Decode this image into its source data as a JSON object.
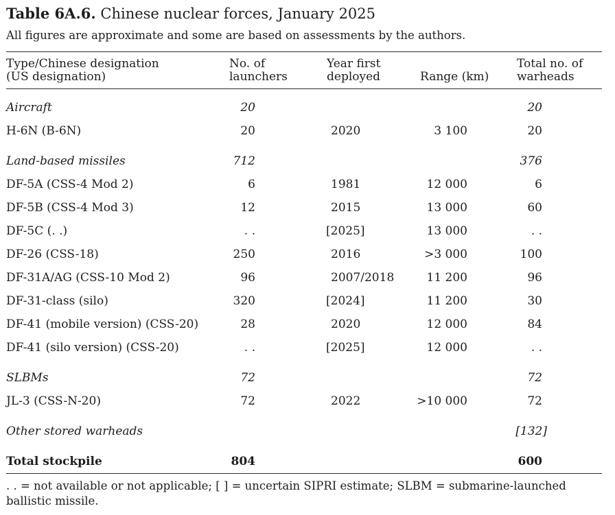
{
  "title": {
    "label": "Table 6A.6.",
    "text": " Chinese nuclear forces, January 2025"
  },
  "subtitle": "All figures are approximate and some are based on assessments by the authors.",
  "table": {
    "columns": [
      {
        "id": "type",
        "header_line1": "Type/Chinese designation",
        "header_line2": "(US designation)"
      },
      {
        "id": "launchers",
        "header_line1": "No. of",
        "header_line2": "launchers"
      },
      {
        "id": "year",
        "header_line1": "Year first",
        "header_line2": "deployed"
      },
      {
        "id": "range",
        "header_line1": "",
        "header_line2": "Range (km)"
      },
      {
        "id": "warheads",
        "header_line1": "Total no. of",
        "header_line2": "warheads"
      }
    ],
    "rows": [
      {
        "style": "section",
        "type": "Aircraft",
        "launchers": "20",
        "year": "",
        "range": "",
        "warheads": "20"
      },
      {
        "style": "data",
        "type": "H-6N (B-6N)",
        "launchers": "20",
        "year": "2020",
        "range": "3 100",
        "warheads": "20"
      },
      {
        "style": "section",
        "type": "Land-based missiles",
        "launchers": "712",
        "year": "",
        "range": "",
        "warheads": "376"
      },
      {
        "style": "data",
        "type": "DF-5A (CSS-4 Mod 2)",
        "launchers": "6",
        "year": "1981",
        "range": "12 000",
        "warheads": "6"
      },
      {
        "style": "data",
        "type": "DF-5B (CSS-4 Mod 3)",
        "launchers": "12",
        "year": "2015",
        "range": "13 000",
        "warheads": "60"
      },
      {
        "style": "data",
        "type": "DF-5C (. .)",
        "launchers": ". .",
        "year": "[2025]",
        "range": "13 000",
        "warheads": ". ."
      },
      {
        "style": "data",
        "type": "DF-26 (CSS-18)",
        "launchers": "250",
        "year": "2016",
        "range": ">3 000",
        "warheads": "100"
      },
      {
        "style": "data",
        "type": "DF-31A/AG (CSS-10 Mod 2)",
        "launchers": "96",
        "year": "2007/2018",
        "range": "11 200",
        "warheads": "96"
      },
      {
        "style": "data",
        "type": "DF-31-class (silo)",
        "launchers": "320",
        "year": "[2024]",
        "range": "11 200",
        "warheads": "30"
      },
      {
        "style": "data",
        "type": "DF-41 (mobile version) (CSS-20)",
        "launchers": "28",
        "year": "2020",
        "range": "12 000",
        "warheads": "84"
      },
      {
        "style": "data",
        "type": "DF-41 (silo version) (CSS-20)",
        "launchers": ". .",
        "year": "[2025]",
        "range": "12 000",
        "warheads": ". ."
      },
      {
        "style": "section",
        "type": "SLBMs",
        "launchers": "72",
        "year": "",
        "range": "",
        "warheads": "72"
      },
      {
        "style": "data",
        "type": "JL-3 (CSS-N-20)",
        "launchers": "72",
        "year": "2022",
        "range": ">10 000",
        "warheads": "72"
      },
      {
        "style": "section",
        "type": "Other stored warheads",
        "launchers": "",
        "year": "",
        "range": "",
        "warheads": "[132]"
      },
      {
        "style": "total",
        "type": "Total stockpile",
        "launchers": "804",
        "year": "",
        "range": "",
        "warheads": "600"
      }
    ]
  },
  "footnote": {
    "line1": ". . = not available or not applicable; [ ] = uncertain SIPRI estimate; SLBM = submarine-launched",
    "line2": "ballistic missile."
  },
  "colors": {
    "background": "#ffffff",
    "text": "#1e1e1e",
    "rule": "#2b2b2b"
  }
}
